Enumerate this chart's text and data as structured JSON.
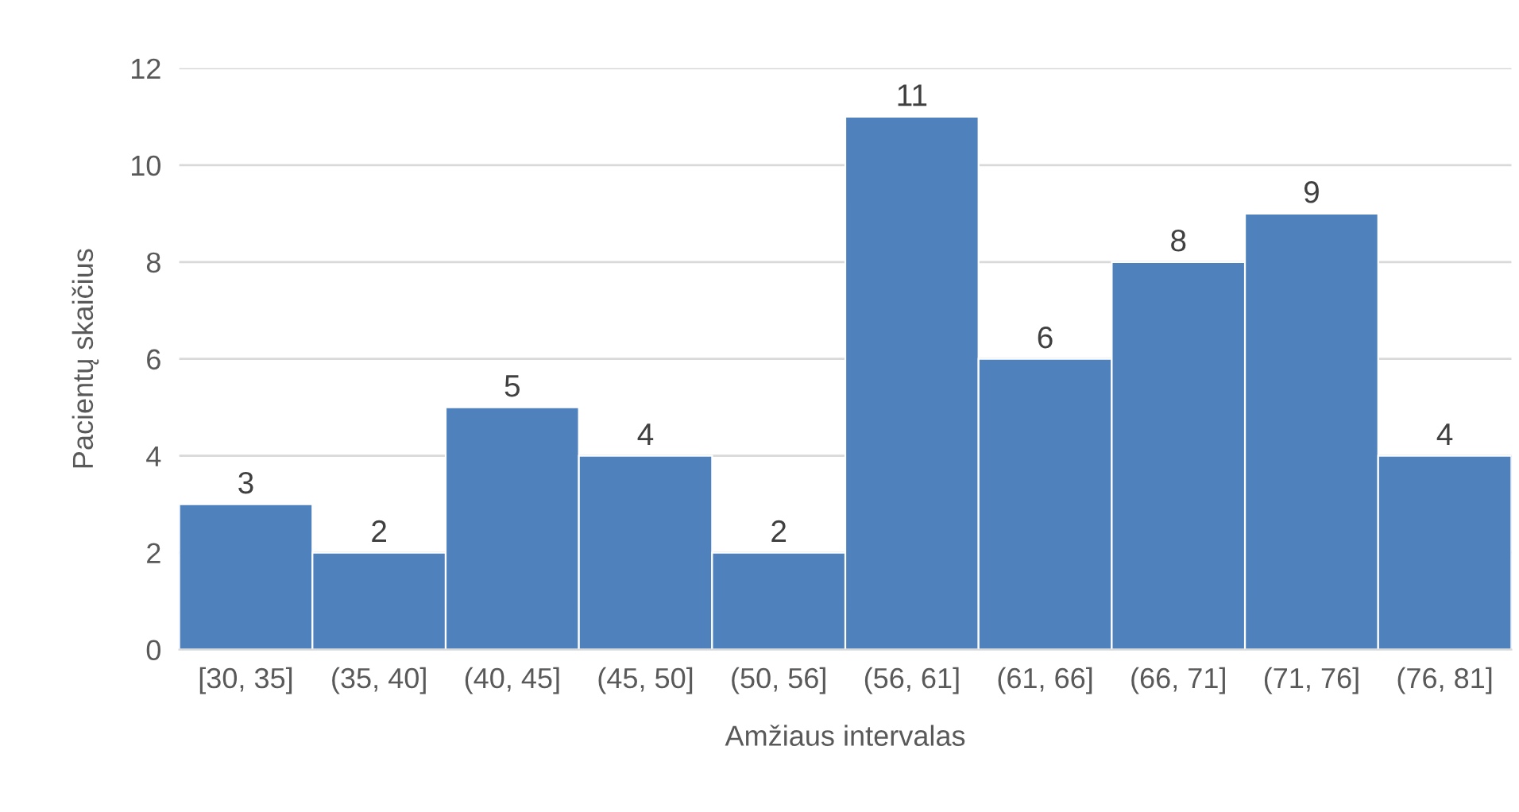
{
  "chart_data": {
    "type": "bar",
    "xlabel": "Amžiaus intervalas",
    "ylabel": "Pacientų skaičius",
    "categories": [
      "[30, 35]",
      "(35, 40]",
      "(40, 45]",
      "(45, 50]",
      "(50, 56]",
      "(56, 61]",
      "(61, 66]",
      "(66, 71]",
      "(71, 76]",
      "(76, 81]"
    ],
    "values": [
      3,
      2,
      5,
      4,
      2,
      11,
      6,
      8,
      9,
      4
    ],
    "color": "#4f81bd",
    "ylim": [
      0,
      12
    ],
    "yticks": [
      0,
      2,
      4,
      6,
      8,
      10,
      12
    ],
    "grid": "y",
    "data_labels": true,
    "legend": false
  }
}
